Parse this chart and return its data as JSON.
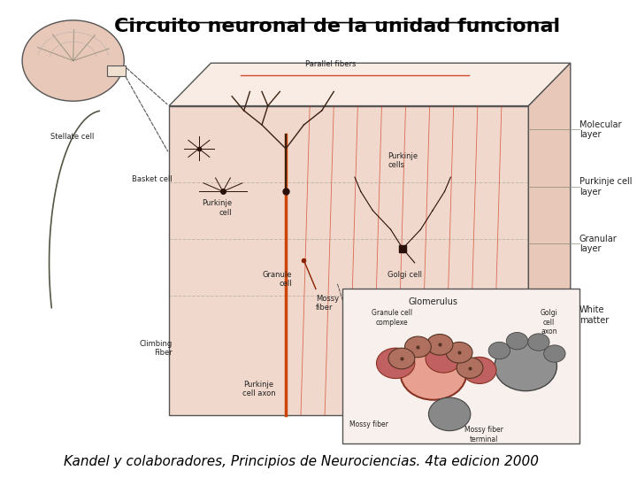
{
  "title": "Circuito neuronal de la unidad funcional",
  "caption": "Kandel y colaboradores, Principios de Neurociencias. 4ta edicion 2000",
  "bg_color": "#ffffff",
  "title_color": "#000000",
  "title_fontsize": 16,
  "caption_fontsize": 11,
  "figure_width": 7.2,
  "figure_height": 5.4,
  "dpi": 100,
  "layers": [
    "Molecular\nlayer",
    "Purkinje cell\nlayer",
    "Granular\nlayer",
    "White\nmatter"
  ],
  "parallel_fiber_color": "#cc2200",
  "climbing_fiber_color": "#cc4400",
  "main_fill": "#f0d8cc",
  "side_fill": "#e8c8b8",
  "top_fill": "#f8ece4",
  "inset_fill_main": "#e8a090",
  "inset_fill_dark": "#c06060",
  "label_fontsize": 7,
  "annotation_color": "#222222"
}
